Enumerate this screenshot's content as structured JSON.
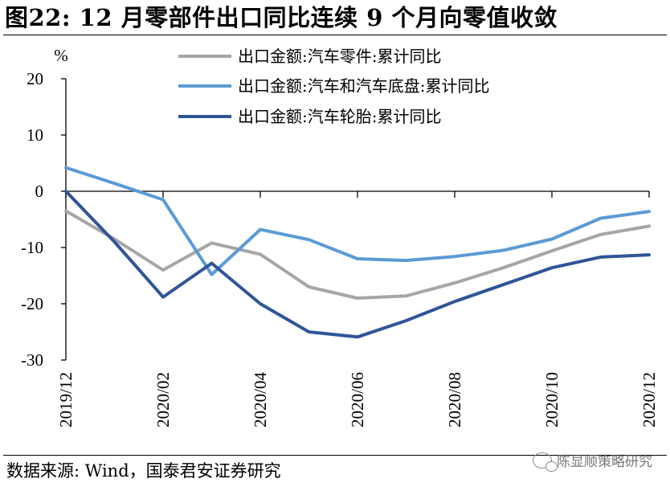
{
  "page": {
    "title": "图22: 12 月零部件出口同比连续 9 个月向零值收敛",
    "source": "数据来源: Wind，国泰君安证券研究",
    "watermark": "陈显顺策略研究"
  },
  "chart_data": {
    "type": "line",
    "ylabel": "%",
    "ylim": [
      -30,
      20
    ],
    "yticks": [
      20,
      10,
      0,
      -10,
      -20,
      -30
    ],
    "x": [
      "2019/12",
      "2020/01",
      "2020/02",
      "2020/03",
      "2020/04",
      "2020/05",
      "2020/06",
      "2020/07",
      "2020/08",
      "2020/09",
      "2020/10",
      "2020/11",
      "2020/12"
    ],
    "xtick_labels": [
      "2019/12",
      "2020/02",
      "2020/04",
      "2020/06",
      "2020/08",
      "2020/10",
      "2020/12"
    ],
    "legend_position": "top",
    "series": [
      {
        "name": "出口金额:汽车零件:累计同比",
        "color": "#a6a6a6",
        "values": [
          -3.5,
          -8.5,
          -14.0,
          -9.2,
          -11.2,
          -17.0,
          -19.0,
          -18.6,
          -16.3,
          -13.6,
          -10.6,
          -7.7,
          -6.2
        ]
      },
      {
        "name": "出口金额:汽车和汽车底盘:累计同比",
        "color": "#5b9bd5",
        "values": [
          4.2,
          1.4,
          -1.5,
          -14.8,
          -6.8,
          -8.6,
          -12.0,
          -12.3,
          -11.6,
          -10.5,
          -8.5,
          -4.8,
          -3.6
        ]
      },
      {
        "name": "出口金额:汽车轮胎:累计同比",
        "color": "#2f5597",
        "values": [
          0.0,
          -9.0,
          -18.8,
          -12.8,
          -20.0,
          -25.0,
          -25.9,
          -23.0,
          -19.6,
          -16.6,
          -13.6,
          -11.7,
          -11.3
        ]
      }
    ]
  }
}
